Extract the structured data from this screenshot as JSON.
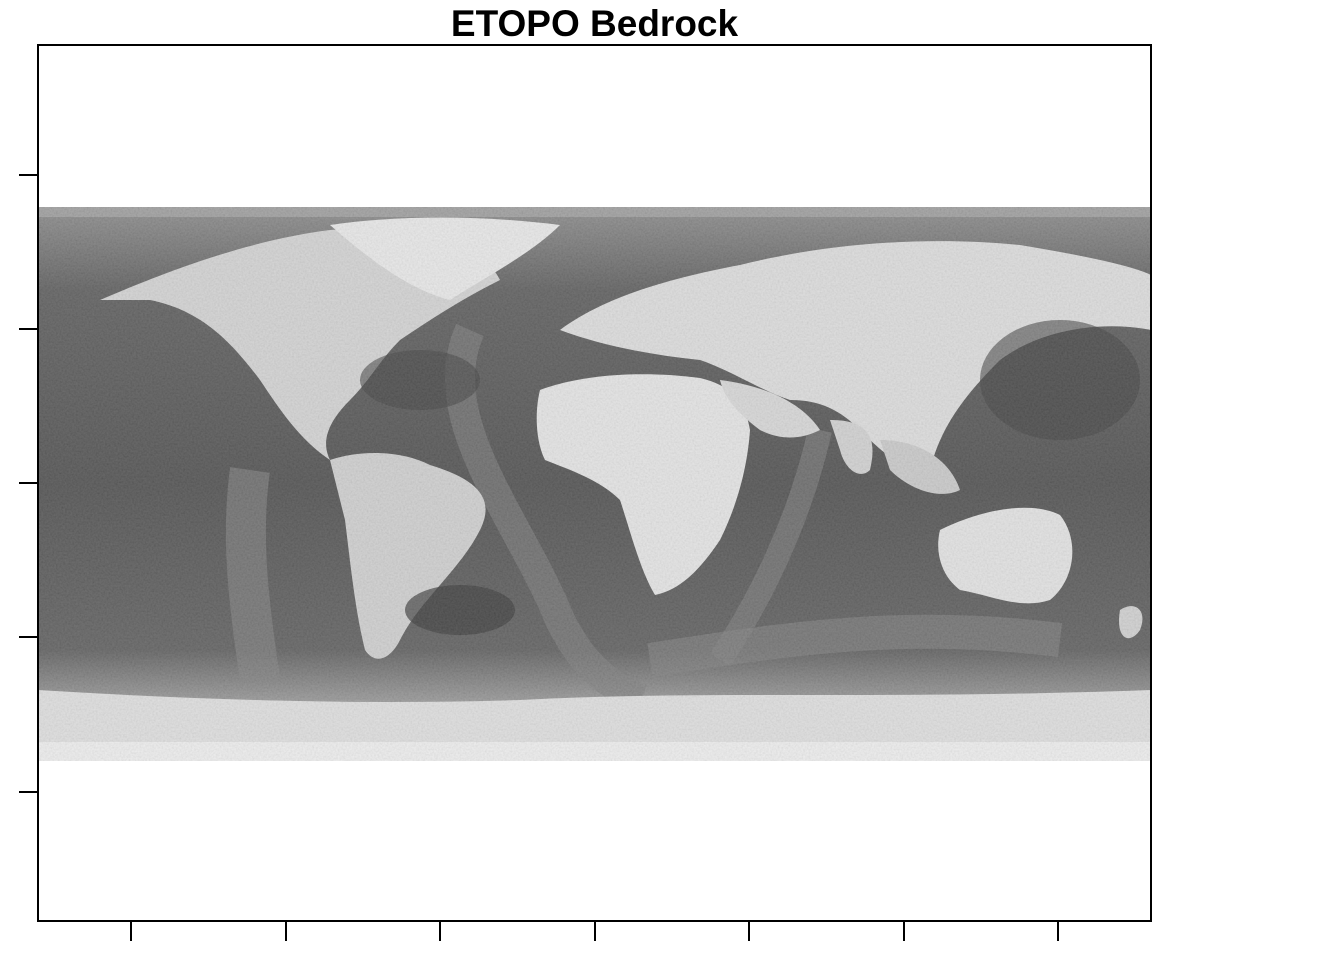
{
  "title": "ETOPO Bedrock",
  "map": {
    "projection": "equirectangular",
    "colormap": "grayscale",
    "dark_color": "#3a3a3a",
    "light_color": "#f0f0f0",
    "x_tick_count": 7,
    "y_tick_count": 5
  }
}
